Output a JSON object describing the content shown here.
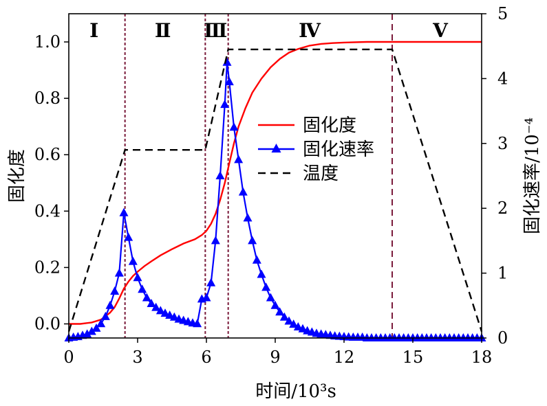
{
  "chart_data": {
    "type": "line",
    "xlabel": "时间/10³s",
    "ylabel_left": "固化度",
    "ylabel_right": "固化速率/10⁻⁴",
    "xlim": [
      0,
      18
    ],
    "ylim_left": [
      -0.05,
      1.1
    ],
    "ylim_right": [
      0,
      5
    ],
    "x_ticks": [
      0,
      3,
      6,
      9,
      12,
      15,
      18
    ],
    "y_left_ticks": [
      0.0,
      0.2,
      0.4,
      0.6,
      0.8,
      1.0
    ],
    "y_right_ticks": [
      0,
      1,
      2,
      3,
      4,
      5
    ],
    "tick_labels": {
      "x": [
        "0",
        "3",
        "6",
        "9",
        "12",
        "15",
        "18"
      ],
      "y_left": [
        "0.0",
        "0.2",
        "0.4",
        "0.6",
        "0.8",
        "1.0"
      ],
      "y_right": [
        "0",
        "1",
        "2",
        "3",
        "4",
        "5"
      ]
    },
    "legend": {
      "placement": "center-right",
      "entries": [
        {
          "name": "固化度",
          "color": "#ff0000",
          "style": "solid"
        },
        {
          "name": "固化速率",
          "color": "#0000ff",
          "style": "solid-triangle"
        },
        {
          "name": "温度",
          "color": "#000000",
          "style": "dashed"
        }
      ]
    },
    "regions": [
      {
        "label": "Ⅰ",
        "x_center": 1.1
      },
      {
        "label": "Ⅱ",
        "x_center": 4.1
      },
      {
        "label": "Ⅲ",
        "x_center": 6.4
      },
      {
        "label": "Ⅳ",
        "x_center": 10.5
      },
      {
        "label": "Ⅴ",
        "x_center": 16.2
      }
    ],
    "boundaries": [
      {
        "x": 2.45,
        "style": "dotted"
      },
      {
        "x": 5.95,
        "style": "dotted"
      },
      {
        "x": 6.95,
        "style": "dotted"
      },
      {
        "x": 14.1,
        "style": "dashed"
      }
    ],
    "series": [
      {
        "name": "固化度",
        "axis": "left",
        "color": "#ff0000",
        "x": [
          0,
          0.5,
          1.0,
          1.4,
          1.8,
          2.0,
          2.2,
          2.4,
          2.6,
          2.8,
          3.0,
          3.3,
          3.6,
          4.0,
          4.5,
          5.0,
          5.5,
          5.8,
          6.0,
          6.2,
          6.4,
          6.6,
          6.8,
          7.0,
          7.2,
          7.4,
          7.7,
          8.0,
          8.4,
          8.8,
          9.2,
          9.6,
          10.0,
          10.5,
          11.0,
          11.5,
          12.0,
          13.0,
          14.0,
          15.0,
          16.0,
          17.0,
          18.0
        ],
        "y": [
          0.0,
          0.0,
          0.005,
          0.015,
          0.04,
          0.06,
          0.09,
          0.125,
          0.15,
          0.17,
          0.185,
          0.205,
          0.222,
          0.243,
          0.265,
          0.285,
          0.3,
          0.315,
          0.33,
          0.355,
          0.39,
          0.44,
          0.5,
          0.57,
          0.64,
          0.7,
          0.765,
          0.82,
          0.87,
          0.91,
          0.94,
          0.962,
          0.975,
          0.987,
          0.993,
          0.996,
          0.998,
          1.0,
          1.0,
          1.0,
          1.0,
          1.0,
          1.0
        ]
      },
      {
        "name": "固化速率",
        "axis": "right",
        "color": "#0000ff",
        "x": [
          0,
          0.2,
          0.4,
          0.6,
          0.8,
          1.0,
          1.2,
          1.4,
          1.6,
          1.8,
          2.0,
          2.2,
          2.4,
          2.6,
          2.8,
          3.0,
          3.2,
          3.4,
          3.6,
          3.8,
          4.0,
          4.2,
          4.4,
          4.6,
          4.8,
          5.0,
          5.2,
          5.4,
          5.6,
          5.8,
          6.0,
          6.2,
          6.4,
          6.6,
          6.8,
          6.9,
          7.0,
          7.2,
          7.4,
          7.6,
          7.8,
          8.0,
          8.2,
          8.4,
          8.6,
          8.8,
          9.0,
          9.2,
          9.4,
          9.6,
          9.8,
          10.0,
          10.2,
          10.4,
          10.6,
          10.8,
          11.0,
          11.2,
          11.4,
          11.6,
          11.8,
          12.0,
          12.2,
          12.4,
          12.6,
          12.8,
          13.0,
          13.2,
          13.4,
          13.6,
          13.8,
          14.0,
          14.2,
          14.4,
          14.6,
          14.8,
          15.0,
          15.2,
          15.4,
          15.6,
          15.8,
          16.0,
          16.2,
          16.4,
          16.6,
          16.8,
          17.0,
          17.2,
          17.4,
          17.6,
          17.8,
          18.0
        ],
        "y": [
          0.0,
          0.01,
          0.02,
          0.04,
          0.06,
          0.1,
          0.15,
          0.22,
          0.33,
          0.5,
          0.72,
          1.0,
          1.93,
          1.55,
          1.18,
          0.93,
          0.75,
          0.62,
          0.53,
          0.47,
          0.42,
          0.38,
          0.35,
          0.32,
          0.29,
          0.27,
          0.25,
          0.23,
          0.22,
          0.6,
          0.62,
          0.85,
          1.5,
          2.5,
          3.6,
          4.25,
          3.95,
          3.25,
          2.75,
          2.25,
          1.85,
          1.5,
          1.2,
          0.98,
          0.78,
          0.62,
          0.5,
          0.4,
          0.32,
          0.26,
          0.21,
          0.17,
          0.14,
          0.11,
          0.09,
          0.07,
          0.06,
          0.05,
          0.04,
          0.03,
          0.025,
          0.02,
          0.015,
          0.01,
          0.01,
          0.01,
          0.0,
          0.0,
          0.0,
          0.0,
          0.0,
          0.0,
          0.0,
          0.0,
          0.0,
          0.0,
          0.0,
          0.0,
          0.0,
          0.0,
          0.0,
          0.0,
          0.0,
          0.0,
          0.0,
          0.0,
          0.0,
          0.0,
          0.0,
          0.0,
          0.0,
          0.0
        ]
      },
      {
        "name": "温度",
        "axis": "right",
        "color": "#000000",
        "x": [
          0,
          2.45,
          5.95,
          6.95,
          14.1,
          18.0
        ],
        "y": [
          0.1,
          2.9,
          2.9,
          4.45,
          4.45,
          0.1
        ]
      }
    ]
  }
}
